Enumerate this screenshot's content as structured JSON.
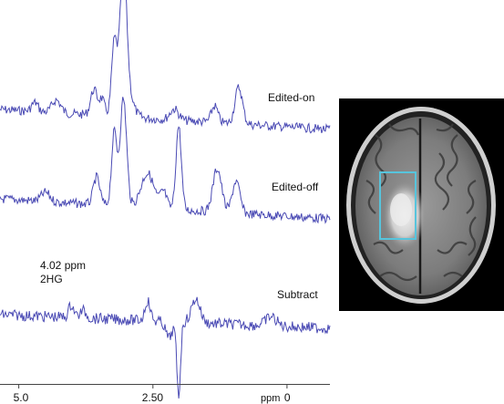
{
  "figure": {
    "trace_labels": {
      "edited_on": "Edited-on",
      "edited_off": "Edited-off",
      "subtract": "Subtract"
    },
    "annotation": {
      "shift": "4.02 ppm",
      "metabolite": "2HG"
    },
    "axis": {
      "ticks": [
        "5.0",
        "2.50",
        "0"
      ],
      "tick_values": [
        5.0,
        2.5,
        0
      ],
      "unit": "ppm",
      "range_ppm": [
        5.35,
        -0.8
      ]
    },
    "trace_color": "#4a4ab4",
    "roi_color": "#57c4dc",
    "mri_panel": {
      "modality": "axial FLAIR MRI of the brain",
      "roi": "rectangle over the hyperintense lesion"
    }
  }
}
